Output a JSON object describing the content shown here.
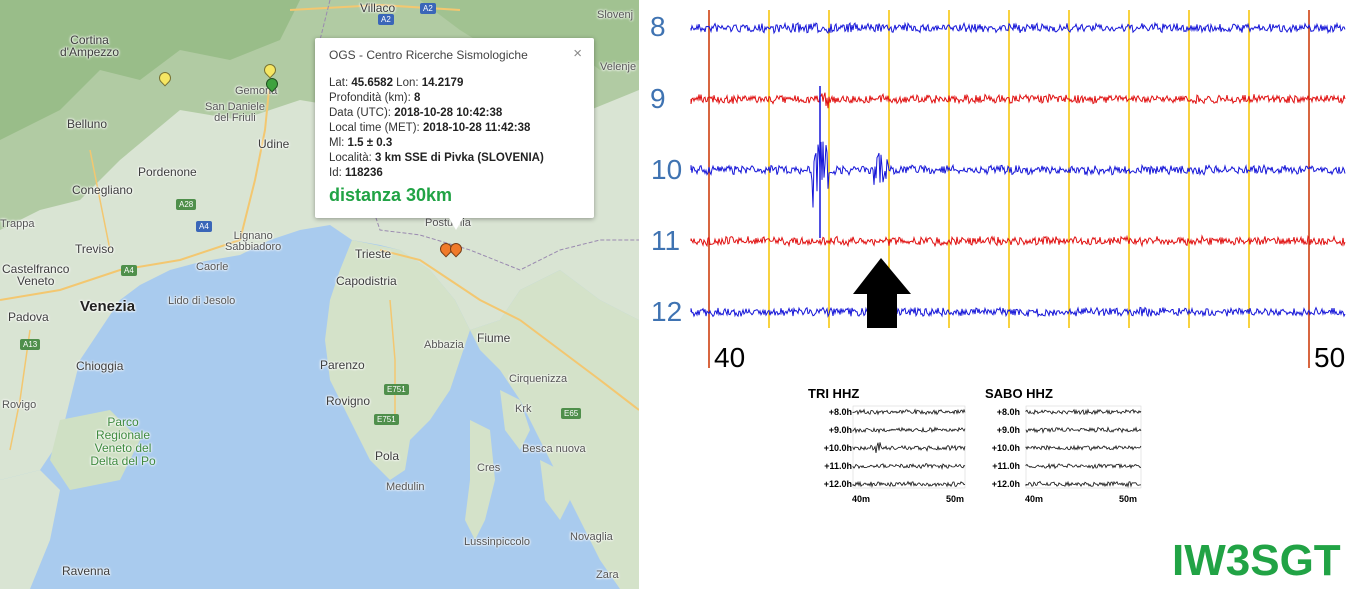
{
  "map": {
    "places": [
      {
        "name": "Villaco",
        "cls": "mid"
      },
      {
        "name": "Slovenj",
        "cls": "small"
      },
      {
        "name": "Cortina\nd'Ampezzo",
        "cls": "mid"
      },
      {
        "name": "Gemona",
        "cls": "small"
      },
      {
        "name": "San Daniele\ndel Friuli",
        "cls": "small"
      },
      {
        "name": "Belluno",
        "cls": "mid"
      },
      {
        "name": "Udine",
        "cls": "mid"
      },
      {
        "name": "Conegliano",
        "cls": "mid"
      },
      {
        "name": "Pordenone",
        "cls": "mid"
      },
      {
        "name": "Treviso",
        "cls": "mid"
      },
      {
        "name": "Lignano\nSabbiadoro",
        "cls": "small"
      },
      {
        "name": "Castelfranco\nVeneto",
        "cls": "mid"
      },
      {
        "name": "Caorle",
        "cls": "small"
      },
      {
        "name": "Venezia",
        "cls": "big"
      },
      {
        "name": "Lido di Jesolo",
        "cls": "small"
      },
      {
        "name": "Padova",
        "cls": "mid"
      },
      {
        "name": "Chioggia",
        "cls": "mid"
      },
      {
        "name": "Trieste",
        "cls": "mid"
      },
      {
        "name": "Capodistria",
        "cls": "mid"
      },
      {
        "name": "Parenzo",
        "cls": "mid"
      },
      {
        "name": "Rovigno",
        "cls": "mid"
      },
      {
        "name": "Pola",
        "cls": "mid"
      },
      {
        "name": "Medulin",
        "cls": "small"
      },
      {
        "name": "Fiume",
        "cls": "mid"
      },
      {
        "name": "Abbazia",
        "cls": "small"
      },
      {
        "name": "Cirquenizza",
        "cls": "small"
      },
      {
        "name": "Krk",
        "cls": "small"
      },
      {
        "name": "Besca nuova",
        "cls": "small"
      },
      {
        "name": "Cres",
        "cls": "small"
      },
      {
        "name": "Lussinpiccolo",
        "cls": "small"
      },
      {
        "name": "Novaglia",
        "cls": "small"
      },
      {
        "name": "Ravenna",
        "cls": "mid"
      },
      {
        "name": "Rovigo",
        "cls": "small"
      },
      {
        "name": "Postumia",
        "cls": "small"
      },
      {
        "name": "Velenje",
        "cls": "small"
      },
      {
        "name": "Zara",
        "cls": "small"
      },
      {
        "name": "Parco\nRegionale\nVeneto del\nDelta del Po",
        "cls": "green"
      },
      {
        "name": "Trappa",
        "cls": "small"
      }
    ],
    "shields": [
      {
        "label": "A2",
        "color": "blue"
      },
      {
        "label": "A2",
        "color": "blue"
      },
      {
        "label": "A28",
        "color": "green"
      },
      {
        "label": "A4",
        "color": "blue"
      },
      {
        "label": "A4",
        "color": "green"
      },
      {
        "label": "A13",
        "color": "green"
      },
      {
        "label": "E751",
        "color": "green"
      },
      {
        "label": "E751",
        "color": "green"
      },
      {
        "label": "E65",
        "color": "green"
      }
    ],
    "popup": {
      "title": "OGS - Centro Ricerche Sismologiche",
      "close": "×",
      "lat_label": "Lat:",
      "lat": "45.6582",
      "lon_label": "Lon:",
      "lon": "14.2179",
      "depth_label": "Profondità (km):",
      "depth": "8",
      "utc_label": "Data (UTC):",
      "utc": "2018-10-28 10:42:38",
      "local_label": "Local time (MET):",
      "local": "2018-10-28 11:42:38",
      "ml_label": "Ml:",
      "ml": "1.5 ± 0.3",
      "locality_label": "Località:",
      "locality": "3 km SSE di Pivka (SLOVENIA)",
      "id_label": "Id:",
      "id": "118236",
      "distance": "distanza 30km"
    }
  },
  "seismogram": {
    "trace_labels": [
      "8",
      "9",
      "10",
      "11",
      "12"
    ],
    "trace_colors": [
      "#1515d8",
      "#e01010",
      "#1515d8",
      "#e01010",
      "#1515d8"
    ],
    "x_start_label": "40",
    "x_end_label": "50",
    "arrow": "up-arrow-icon"
  },
  "mini_plots": [
    {
      "title": "TRI HHZ",
      "rows": [
        "+8.0h",
        "+9.0h",
        "+10.0h",
        "+11.0h",
        "+12.0h"
      ],
      "x_labels": [
        "40m",
        "50m"
      ]
    },
    {
      "title": "SABO HHZ",
      "rows": [
        "+8.0h",
        "+9.0h",
        "+10.0h",
        "+11.0h",
        "+12.0h"
      ],
      "x_labels": [
        "40m",
        "50m"
      ]
    }
  ],
  "callsign": "IW3SGT",
  "colors": {
    "accent": "#21a345",
    "grid_yellow": "#f5c400",
    "grid_red": "#cc3300",
    "label_blue": "#3f73b2"
  }
}
